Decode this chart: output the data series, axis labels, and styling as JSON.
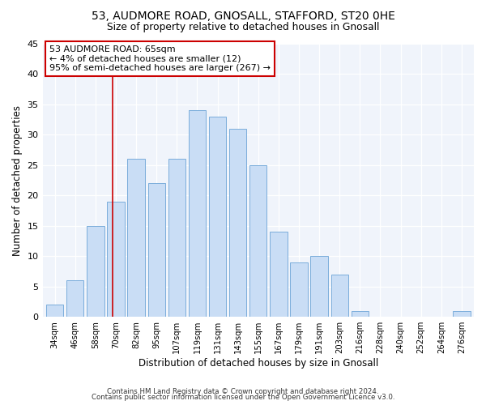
{
  "title1": "53, AUDMORE ROAD, GNOSALL, STAFFORD, ST20 0HE",
  "title2": "Size of property relative to detached houses in Gnosall",
  "xlabel": "Distribution of detached houses by size in Gnosall",
  "ylabel": "Number of detached properties",
  "bin_labels": [
    "34sqm",
    "46sqm",
    "58sqm",
    "70sqm",
    "82sqm",
    "95sqm",
    "107sqm",
    "119sqm",
    "131sqm",
    "143sqm",
    "155sqm",
    "167sqm",
    "179sqm",
    "191sqm",
    "203sqm",
    "216sqm",
    "228sqm",
    "240sqm",
    "252sqm",
    "264sqm",
    "276sqm"
  ],
  "bar_values": [
    2,
    6,
    15,
    19,
    26,
    22,
    26,
    34,
    33,
    31,
    25,
    14,
    9,
    10,
    7,
    1,
    0,
    0,
    0,
    0,
    1
  ],
  "bar_color": "#c9ddf5",
  "bar_edge_color": "#7aaddb",
  "ylim": [
    0,
    45
  ],
  "yticks": [
    0,
    5,
    10,
    15,
    20,
    25,
    30,
    35,
    40,
    45
  ],
  "annotation_title": "53 AUDMORE ROAD: 65sqm",
  "annotation_line1": "← 4% of detached houses are smaller (12)",
  "annotation_line2": "95% of semi-detached houses are larger (267) →",
  "vline_x_index": 2.83,
  "footer1": "Contains HM Land Registry data © Crown copyright and database right 2024.",
  "footer2": "Contains public sector information licensed under the Open Government Licence v3.0."
}
